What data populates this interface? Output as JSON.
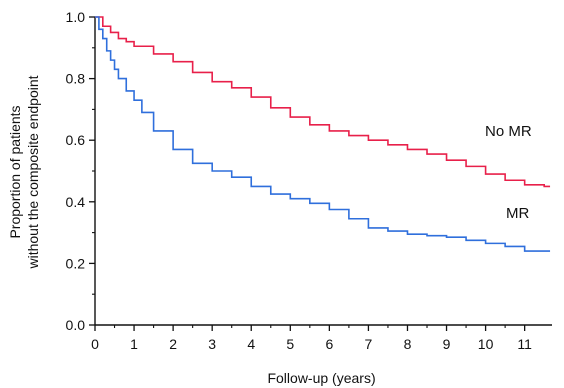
{
  "chart_data": {
    "type": "line",
    "step": true,
    "title": "",
    "xlabel": "Follow-up (years)",
    "ylabel_lines": [
      "Proportion of patients",
      "without the composite endpoint"
    ],
    "xlim": [
      0,
      11.7
    ],
    "ylim": [
      0,
      1.0
    ],
    "x_ticks": [
      0,
      1,
      2,
      3,
      4,
      5,
      6,
      7,
      8,
      9,
      10,
      11
    ],
    "x_tick_labels": [
      "0",
      "1",
      "2",
      "3",
      "4",
      "5",
      "6",
      "7",
      "8",
      "9",
      "10",
      "11"
    ],
    "y_ticks": [
      0,
      0.2,
      0.4,
      0.6,
      0.8,
      1.0
    ],
    "y_tick_labels": [
      "0.0",
      "0.2",
      "0.4",
      "0.6",
      "0.8",
      "1.0"
    ],
    "grid": false,
    "legend": "none",
    "series": [
      {
        "name": "No MR",
        "color": "#e8204a",
        "x": [
          0,
          0.2,
          0.4,
          0.6,
          0.8,
          1.0,
          1.5,
          2.0,
          2.5,
          3.0,
          3.5,
          4.0,
          4.5,
          5.0,
          5.5,
          6.0,
          6.5,
          7.0,
          7.5,
          8.0,
          8.5,
          9.0,
          9.5,
          10.0,
          10.5,
          11.0,
          11.5
        ],
        "y": [
          1.0,
          0.97,
          0.95,
          0.93,
          0.92,
          0.905,
          0.88,
          0.855,
          0.82,
          0.79,
          0.77,
          0.74,
          0.705,
          0.675,
          0.65,
          0.63,
          0.615,
          0.6,
          0.585,
          0.57,
          0.555,
          0.535,
          0.515,
          0.49,
          0.47,
          0.455,
          0.45
        ]
      },
      {
        "name": "MR",
        "color": "#2f6fdc",
        "x": [
          0,
          0.1,
          0.2,
          0.3,
          0.4,
          0.5,
          0.6,
          0.8,
          1.0,
          1.2,
          1.5,
          2.0,
          2.5,
          3.0,
          3.5,
          4.0,
          4.5,
          5.0,
          5.5,
          6.0,
          6.5,
          7.0,
          7.5,
          8.0,
          8.5,
          9.0,
          9.5,
          10.0,
          10.5,
          11.0,
          11.5
        ],
        "y": [
          1.0,
          0.96,
          0.93,
          0.89,
          0.86,
          0.83,
          0.8,
          0.76,
          0.73,
          0.69,
          0.63,
          0.57,
          0.525,
          0.5,
          0.48,
          0.45,
          0.425,
          0.41,
          0.395,
          0.375,
          0.345,
          0.315,
          0.305,
          0.295,
          0.29,
          0.285,
          0.275,
          0.265,
          0.255,
          0.24,
          0.24
        ]
      }
    ]
  }
}
